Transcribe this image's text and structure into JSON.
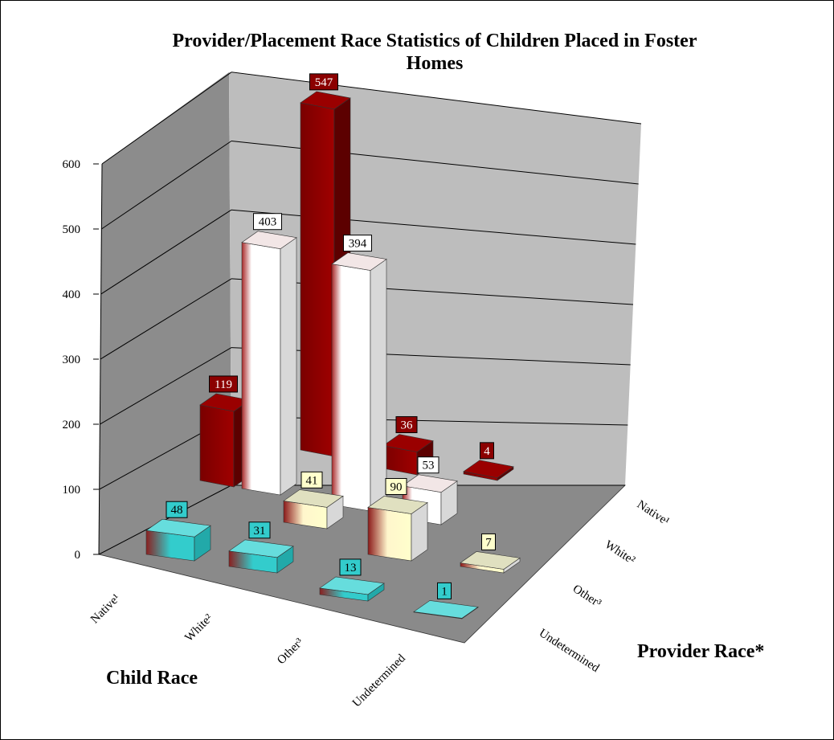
{
  "chart_data": {
    "type": "bar",
    "variant": "3d-column",
    "title_lines": [
      "Provider/Placement Race Statistics of Children Placed in Foster",
      "Homes"
    ],
    "xlabel": "Child Race",
    "ylabel": "",
    "zlabel": "Provider Race*",
    "categories": [
      "Native¹",
      "White²",
      "Other³",
      "Undetermined"
    ],
    "series": [
      {
        "name": "Native¹",
        "values": [
          119,
          547,
          36,
          4
        ],
        "color": "#8b0000"
      },
      {
        "name": "White²",
        "values": [
          403,
          394,
          53,
          null
        ],
        "color": "#ffffff"
      },
      {
        "name": "Other³",
        "values": [
          null,
          41,
          90,
          7
        ],
        "color": "#ffffcc"
      },
      {
        "name": "Undetermined",
        "values": [
          48,
          31,
          13,
          1
        ],
        "color": "#33cccc"
      }
    ],
    "ylim": [
      0,
      600
    ],
    "yticks": [
      0,
      100,
      200,
      300,
      400,
      500,
      600
    ],
    "grid": true,
    "legend": "none"
  }
}
